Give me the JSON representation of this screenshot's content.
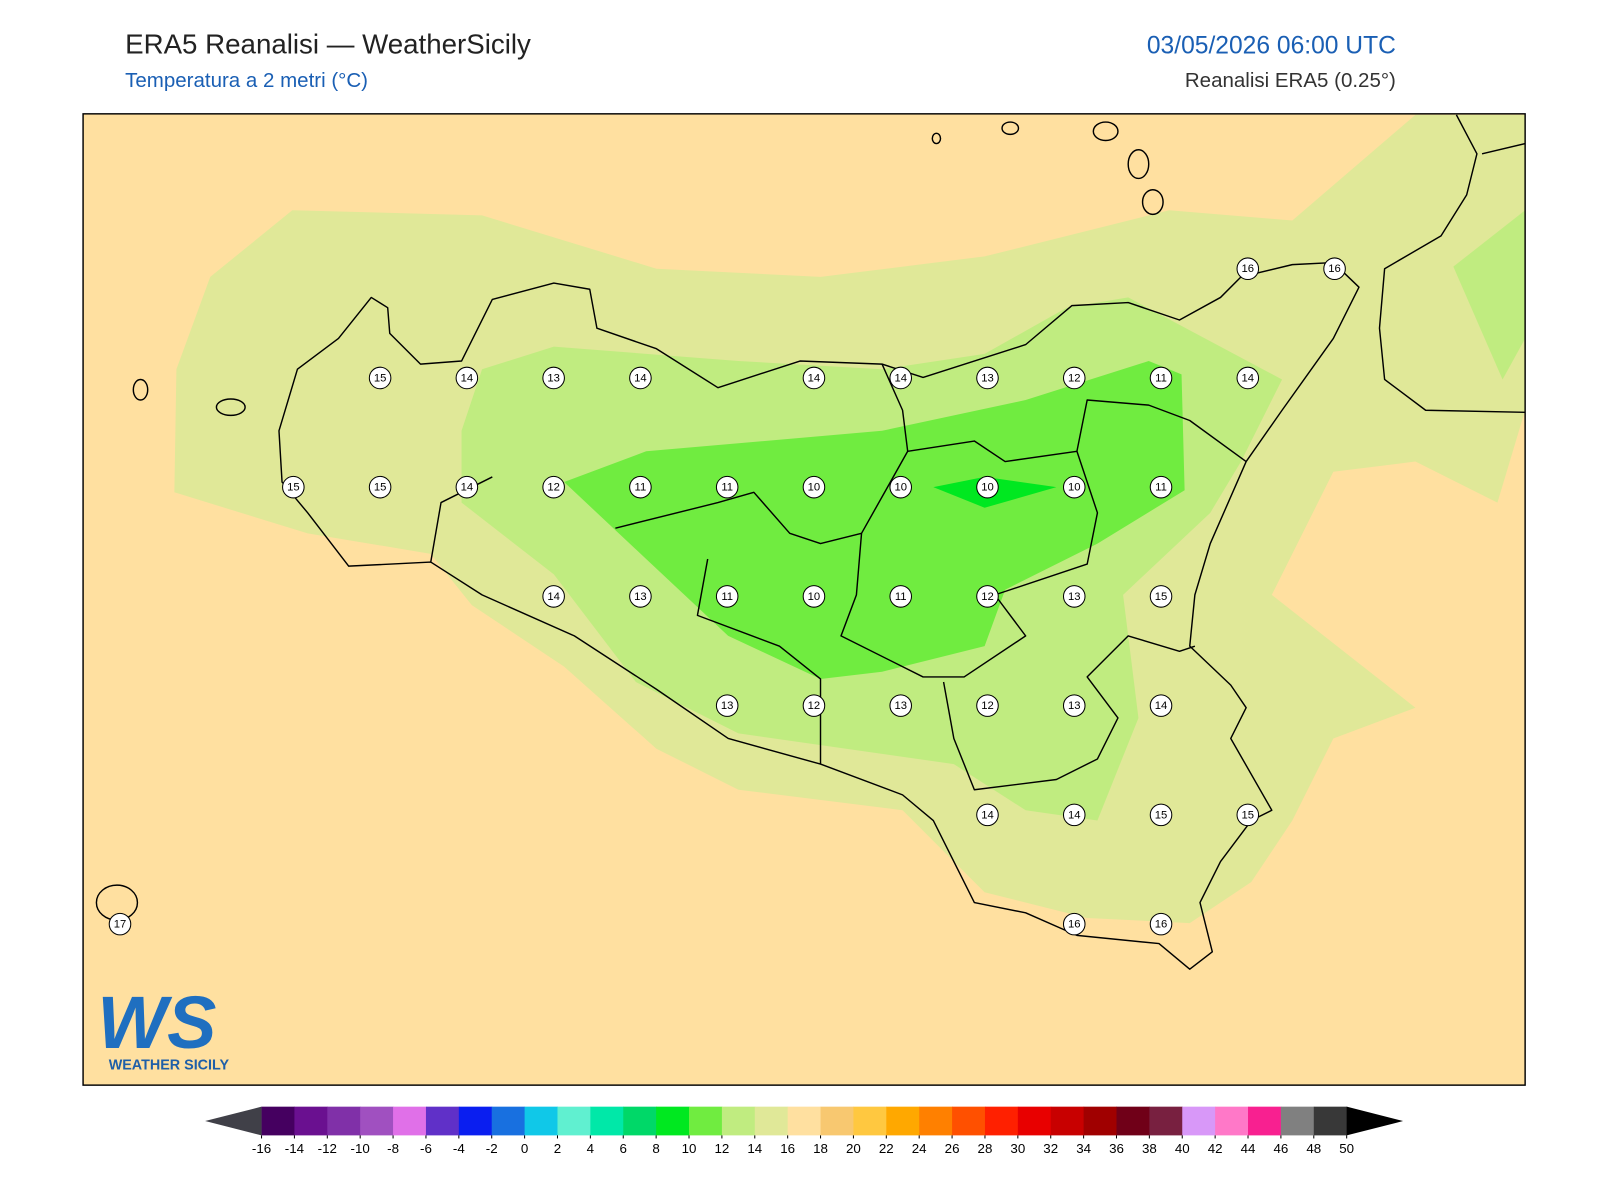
{
  "header": {
    "title": "ERA5 Reanalisi — WeatherSicily",
    "subtitle": "Temperatura a 2 metri (°C)",
    "datetime": "03/05/2026 06:00 UTC",
    "source": "Reanalisi ERA5 (0.25°)"
  },
  "map": {
    "points": [
      16,
      16,
      15,
      14,
      13,
      14,
      14,
      14,
      13,
      12,
      11,
      14,
      15,
      15,
      14,
      12,
      11,
      11,
      10,
      10,
      10,
      10,
      11,
      14,
      13,
      11,
      10,
      11,
      12,
      13,
      15,
      13,
      12,
      13,
      12,
      13,
      14,
      14,
      14,
      15,
      15,
      16,
      16,
      17
    ]
  },
  "colorbar": {
    "ticks": [
      -16,
      -14,
      -12,
      -10,
      -8,
      -6,
      -4,
      -2,
      0,
      2,
      4,
      6,
      8,
      10,
      12,
      14,
      16,
      18,
      20,
      22,
      24,
      26,
      28,
      30,
      32,
      34,
      36,
      38,
      40,
      42,
      44,
      46,
      48,
      50
    ],
    "colors": [
      "#450060",
      "#6a1090",
      "#8030a8",
      "#a050c0",
      "#e070e8",
      "#6030c8",
      "#0a1ef0",
      "#1870e0",
      "#10c8e8",
      "#60f0d0",
      "#00e8a8",
      "#00d868",
      "#00e820",
      "#70ec40",
      "#c0ec80",
      "#e0e898",
      "#ffe0a0",
      "#f8c870",
      "#ffc840",
      "#ffa800",
      "#ff8000",
      "#ff5000",
      "#ff2000",
      "#e80000",
      "#c80000",
      "#a00000",
      "#700018",
      "#782040",
      "#d898f8",
      "#ff78c8",
      "#f82090",
      "#808080",
      "#383838"
    ],
    "under_color": "#404048",
    "over_color": "#000000"
  },
  "logo": {
    "mark": "WS",
    "text": "WEATHER SICILY"
  }
}
